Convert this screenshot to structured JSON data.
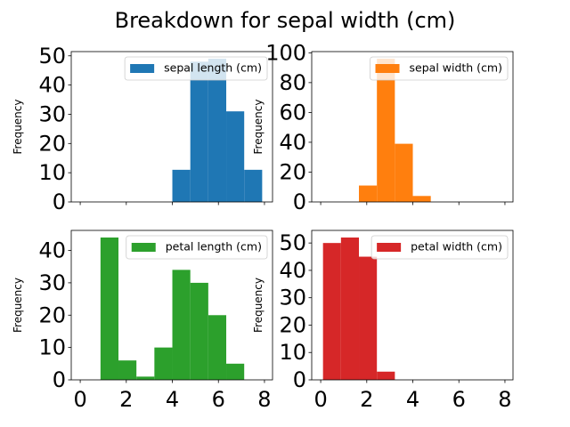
{
  "title": "Breakdown for sepal width (cm)",
  "chart_data": [
    {
      "type": "histogram",
      "bins": [
        0.1,
        0.88,
        1.66,
        2.44,
        3.22,
        4.0,
        4.78,
        5.56,
        6.34,
        7.12,
        7.9
      ],
      "series": [
        {
          "name": "sepal length (cm)",
          "color": "#1f77b4",
          "values": [
            0,
            0,
            0,
            0,
            0,
            11,
            48,
            49,
            31,
            11
          ]
        }
      ],
      "xlim": [
        -0.39,
        8.35
      ],
      "xticks": [
        0,
        2,
        4,
        6,
        8
      ],
      "xticklabels": false,
      "ylim": [
        0,
        51.45
      ],
      "yticks": [
        0,
        10,
        20,
        30,
        40,
        50
      ],
      "ylabel": "Frequency",
      "legend": "upper right"
    },
    {
      "type": "histogram",
      "bins": [
        0.1,
        0.88,
        1.66,
        2.44,
        3.22,
        4.0,
        4.78,
        5.56,
        6.34,
        7.12,
        7.9
      ],
      "series": [
        {
          "name": "sepal width (cm)",
          "color": "#ff7f0e",
          "values": [
            0,
            0,
            11,
            96,
            39,
            4,
            0,
            0,
            0,
            0
          ]
        }
      ],
      "xlim": [
        -0.39,
        8.35
      ],
      "xticks": [
        0,
        2,
        4,
        6,
        8
      ],
      "xticklabels": false,
      "ylim": [
        0,
        100.8
      ],
      "yticks": [
        0,
        20,
        40,
        60,
        80,
        100
      ],
      "ylabel": "Frequency",
      "legend": "upper right"
    },
    {
      "type": "histogram",
      "bins": [
        0.1,
        0.88,
        1.66,
        2.44,
        3.22,
        4.0,
        4.78,
        5.56,
        6.34,
        7.12,
        7.9
      ],
      "series": [
        {
          "name": "petal length (cm)",
          "color": "#2ca02c",
          "values": [
            0,
            44,
            6,
            1,
            10,
            34,
            30,
            20,
            5,
            0
          ]
        }
      ],
      "xlim": [
        -0.39,
        8.35
      ],
      "xticks": [
        0,
        2,
        4,
        6,
        8
      ],
      "xticklabels": true,
      "ylim": [
        0,
        46.2
      ],
      "yticks": [
        0,
        10,
        20,
        30,
        40
      ],
      "ylabel": "Frequency",
      "legend": "upper right"
    },
    {
      "type": "histogram",
      "bins": [
        0.1,
        0.88,
        1.66,
        2.44,
        3.22,
        4.0,
        4.78,
        5.56,
        6.34,
        7.12,
        7.9
      ],
      "series": [
        {
          "name": "petal width (cm)",
          "color": "#d62728",
          "values": [
            50,
            52,
            45,
            3,
            0,
            0,
            0,
            0,
            0,
            0
          ]
        }
      ],
      "xlim": [
        -0.39,
        8.35
      ],
      "xticks": [
        0,
        2,
        4,
        6,
        8
      ],
      "xticklabels": true,
      "ylim": [
        0,
        54.6
      ],
      "yticks": [
        0,
        10,
        20,
        30,
        40,
        50
      ],
      "ylabel": "Frequency",
      "legend": "upper right"
    }
  ]
}
